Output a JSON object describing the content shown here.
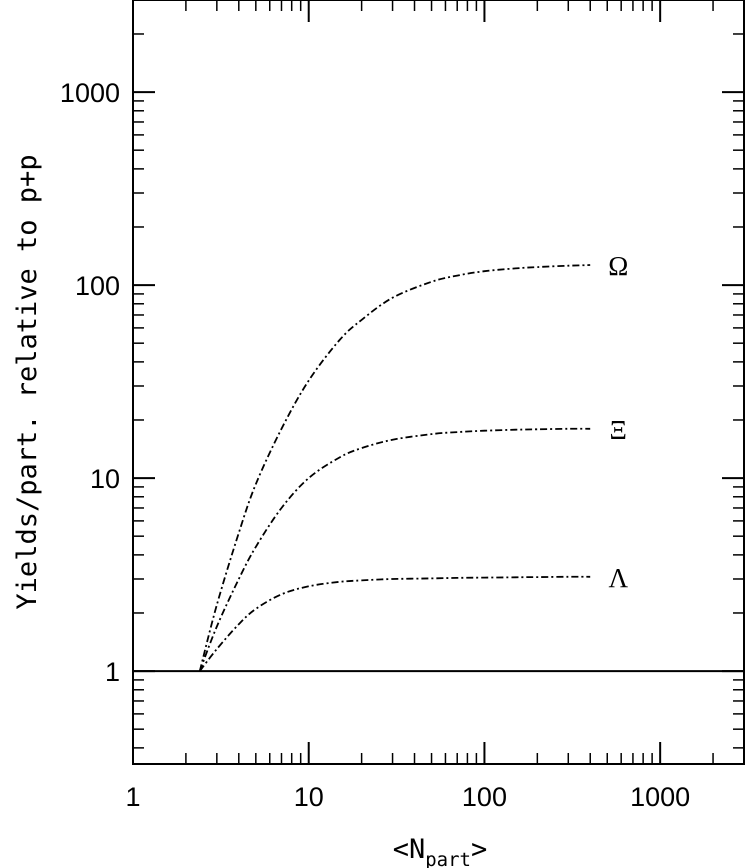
{
  "chart_data": {
    "type": "line",
    "xlabel": "<N",
    "xlabel_sub": "part",
    "xlabel_end": ">",
    "ylabel": "Yields/part. relative to p+p",
    "xscale": "log",
    "yscale": "log",
    "xlim": [
      1,
      3000
    ],
    "ylim": [
      0.33,
      3000
    ],
    "x_ticks": [
      {
        "value": 1,
        "label": "1"
      },
      {
        "value": 10,
        "label": "10"
      },
      {
        "value": 100,
        "label": "100"
      },
      {
        "value": 1000,
        "label": "1000"
      }
    ],
    "y_ticks": [
      {
        "value": 1,
        "label": "1"
      },
      {
        "value": 10,
        "label": "10"
      },
      {
        "value": 100,
        "label": "100"
      },
      {
        "value": 1000,
        "label": "1000"
      }
    ],
    "reference_line": {
      "y": 1,
      "style": "solid"
    },
    "series": [
      {
        "name": "Ω",
        "style": "dash-dot",
        "x": [
          2.4,
          3,
          4,
          5,
          7,
          10,
          15,
          20,
          30,
          50,
          70,
          100,
          150,
          200,
          300,
          400
        ],
        "y": [
          1.0,
          2.2,
          5.2,
          9.3,
          18,
          32,
          52,
          66,
          86,
          104,
          112,
          118,
          122,
          124,
          126,
          127
        ]
      },
      {
        "name": "Ξ",
        "style": "dash-dot",
        "x": [
          2.4,
          3,
          4,
          5,
          7,
          10,
          15,
          20,
          30,
          50,
          70,
          100,
          150,
          200,
          300,
          400
        ],
        "y": [
          1.0,
          1.7,
          3.0,
          4.4,
          7.0,
          10.0,
          12.8,
          14.3,
          15.8,
          16.9,
          17.3,
          17.6,
          17.8,
          17.9,
          18.0,
          18.0
        ]
      },
      {
        "name": "Λ",
        "style": "dash-dot",
        "x": [
          2.4,
          3,
          4,
          5,
          7,
          10,
          15,
          20,
          30,
          50,
          70,
          100,
          150,
          200,
          300,
          400
        ],
        "y": [
          1.0,
          1.3,
          1.75,
          2.1,
          2.5,
          2.75,
          2.9,
          2.95,
          3.0,
          3.02,
          3.04,
          3.05,
          3.06,
          3.07,
          3.08,
          3.08
        ]
      }
    ],
    "colors": {
      "line": "#000000",
      "background": "#ffffff"
    }
  }
}
